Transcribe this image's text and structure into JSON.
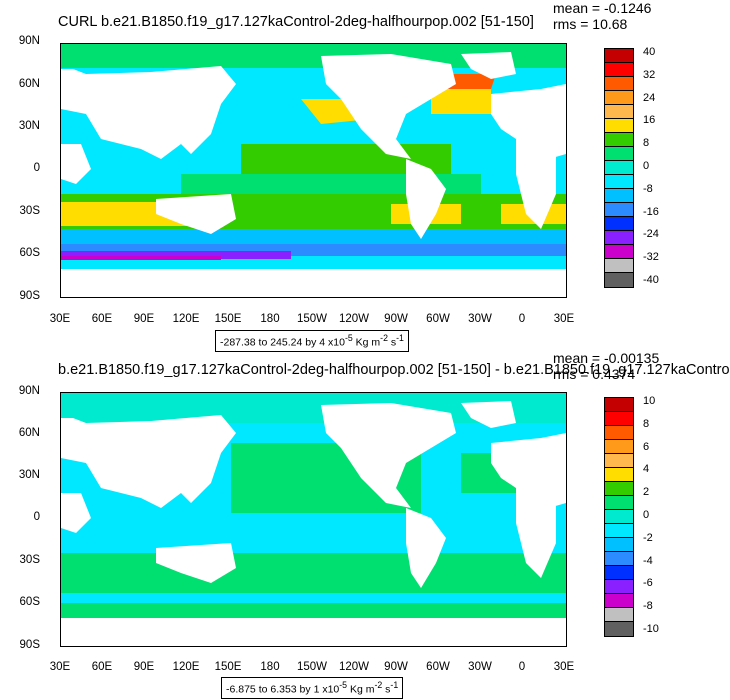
{
  "panels": [
    {
      "title": "CURL b.e21.B1850.f19_g17.127kaControl-2deg-halfhourpop.002 [51-150]",
      "mean": "mean = -0.1246",
      "rms": "rms = 10.68",
      "range_label": "-287.38 to 245.24 by 4 x10",
      "colorbar_labels": [
        "40",
        "32",
        "24",
        "16",
        "8",
        "0",
        "-8",
        "-16",
        "-24",
        "-32",
        "-40"
      ],
      "colorbar_colors": [
        "#c40000",
        "#ff0000",
        "#ff5a00",
        "#ff9a1a",
        "#ffb84d",
        "#ffdd00",
        "#33cc00",
        "#00e070",
        "#00ead0",
        "#00e8ff",
        "#00c0ff",
        "#2c8cff",
        "#0030ff",
        "#8a20ff",
        "#cc00cc",
        "#c0c0c0",
        "#606060"
      ]
    },
    {
      "title": "b.e21.B1850.f19_g17.127kaControl-2deg-halfhourpop.002 [51-150] - b.e21.B1850.f19_g17.127kaContro",
      "mean": "mean = -0.00135",
      "rms": "rms = 0.4374",
      "range_label": "-6.875 to 6.353 by 1 x10",
      "colorbar_labels": [
        "10",
        "8",
        "6",
        "4",
        "2",
        "0",
        "-2",
        "-4",
        "-6",
        "-8",
        "-10"
      ],
      "colorbar_colors": [
        "#c40000",
        "#ff0000",
        "#ff5a00",
        "#ff9a1a",
        "#ffb84d",
        "#ffdd00",
        "#33cc00",
        "#00e070",
        "#00ead0",
        "#00e8ff",
        "#00c0ff",
        "#2c8cff",
        "#0030ff",
        "#8a20ff",
        "#cc00cc",
        "#c0c0c0",
        "#606060"
      ]
    }
  ],
  "units": {
    "exponent": "-5",
    "unit_main": "Kg m",
    "unit_exp": "-2",
    "unit_tail": "s",
    "unit_tail_exp": "-1"
  },
  "axes": {
    "lat_labels": [
      "90N",
      "60N",
      "30N",
      "0",
      "30S",
      "60S",
      "90S"
    ],
    "lon_labels": [
      "30E",
      "60E",
      "90E",
      "120E",
      "150E",
      "180",
      "150W",
      "120W",
      "90W",
      "60W",
      "30W",
      "0",
      "30E"
    ]
  }
}
